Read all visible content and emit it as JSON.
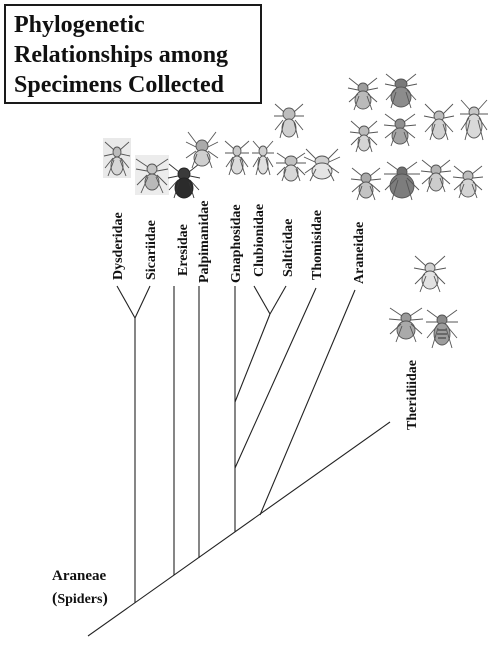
{
  "title": {
    "line1": "Phylogenetic",
    "line2": "Relationships among",
    "line3": "Specimens Collected"
  },
  "root": {
    "name": "Araneae",
    "common_open": "(",
    "common": "Spiders",
    "common_close": ")"
  },
  "taxa": [
    "Dysderidae",
    "Sicariidae",
    "Eresidae",
    "Palpimanidae",
    "Gnaphosidae",
    "Clubionidae",
    "Salticidae",
    "Thomisidae",
    "Araneidae",
    "Theridiidae"
  ]
}
